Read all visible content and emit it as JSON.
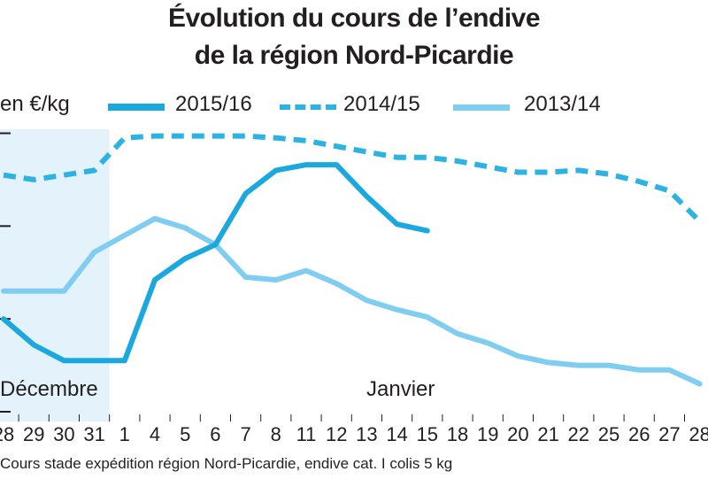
{
  "chart_data": {
    "type": "line",
    "title": "Évolution du cours de l’endive",
    "subtitle": "de la région Nord-Picardie",
    "ylabel": "en €/kg",
    "months": [
      "Décembre",
      "Janvier"
    ],
    "categories": [
      "28",
      "29",
      "30",
      "31",
      "1",
      "4",
      "5",
      "6",
      "7",
      "8",
      "11",
      "12",
      "13",
      "14",
      "15",
      "18",
      "19",
      "20",
      "21",
      "22",
      "25",
      "26",
      "27",
      "28"
    ],
    "series": [
      {
        "name": "2015/16",
        "color": "#1ba8df",
        "style": "solid-thick",
        "values": [
          1.0,
          0.72,
          0.55,
          0.55,
          0.55,
          1.42,
          1.65,
          1.8,
          2.35,
          2.6,
          2.66,
          2.66,
          2.32,
          2.02,
          1.95,
          null,
          null,
          null,
          null,
          null,
          null,
          null,
          null,
          null
        ]
      },
      {
        "name": "2014/15",
        "color": "#2db3e3",
        "style": "dashed",
        "values": [
          2.55,
          2.5,
          2.55,
          2.6,
          2.95,
          2.97,
          2.97,
          2.97,
          2.97,
          2.95,
          2.92,
          2.86,
          2.8,
          2.74,
          2.74,
          2.7,
          2.64,
          2.58,
          2.58,
          2.6,
          2.56,
          2.48,
          2.38,
          2.05
        ]
      },
      {
        "name": "2013/14",
        "color": "#7fcdf0",
        "style": "solid",
        "values": [
          1.3,
          1.3,
          1.3,
          1.72,
          1.9,
          2.08,
          1.98,
          1.8,
          1.45,
          1.42,
          1.52,
          1.38,
          1.2,
          1.1,
          1.02,
          0.84,
          0.74,
          0.6,
          0.53,
          0.5,
          0.5,
          0.45,
          0.45,
          0.3
        ]
      }
    ],
    "ylim": [
      0,
      3.1
    ],
    "highlight_band": {
      "from": "28",
      "to": "31",
      "color": "#e3f2fb"
    },
    "grid": false,
    "legend_position": "top"
  },
  "footnote": "Cours stade expédition région Nord-Picardie, endive cat. I colis 5 kg"
}
